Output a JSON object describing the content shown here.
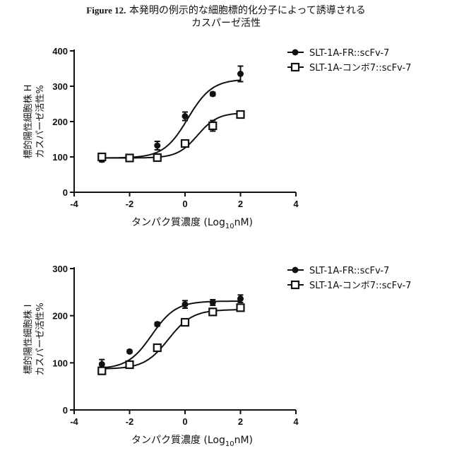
{
  "figure": {
    "label": "Figure 12.",
    "title_line1": "本発明の例示的な細胞標的化分子によって誘導される",
    "title_line2": "カスパーゼ活性"
  },
  "chart_data": [
    {
      "type": "line",
      "xlabel": "タンパク質濃度 (Log10nM)",
      "xlabel_main": "タンパク質濃度 (Log",
      "xlabel_sub": "10",
      "xlabel_end": "nM)",
      "ylabel_line1": "標的陽性細胞株 H",
      "ylabel_line2": "カスパーゼ活性%",
      "xlim": [
        -4,
        4
      ],
      "ylim": [
        0,
        400
      ],
      "x_ticks": [
        -4,
        -2,
        0,
        2,
        4
      ],
      "x_tick_labels": [
        "-4",
        "-2",
        "0",
        "2",
        "4"
      ],
      "y_ticks": [
        0,
        100,
        200,
        300,
        400
      ],
      "y_tick_labels": [
        "0",
        "100",
        "200",
        "300",
        "400"
      ],
      "legend_position": "top-right",
      "series": [
        {
          "name": "SLT-1A-FR::scFv-7",
          "marker": "filled-circle",
          "x": [
            -3,
            -2,
            -1,
            0,
            1,
            2
          ],
          "y": [
            92,
            97,
            132,
            215,
            278,
            335
          ],
          "err": [
            6,
            4,
            12,
            12,
            5,
            22
          ],
          "fit": {
            "bottom": 97,
            "top": 320,
            "ec50": 0.1,
            "slope": 1.0
          }
        },
        {
          "name": "SLT-1A-コンボ7::scFv-7",
          "marker": "open-square",
          "x": [
            -3,
            -2,
            -1,
            0,
            1,
            2
          ],
          "y": [
            100,
            97,
            98,
            138,
            188,
            220
          ],
          "err": [
            8,
            4,
            3,
            5,
            15,
            8
          ],
          "fit": {
            "bottom": 97,
            "top": 225,
            "ec50": 0.45,
            "slope": 1.2
          }
        }
      ]
    },
    {
      "type": "line",
      "xlabel": "タンパク質濃度 (Log10nM)",
      "xlabel_main": "タンパク質濃度 (Log",
      "xlabel_sub": "10",
      "xlabel_end": "nM)",
      "ylabel_line1": "標的陽性細胞株 I",
      "ylabel_line2": "カスパーゼ活性%",
      "xlim": [
        -4,
        4
      ],
      "ylim": [
        0,
        300
      ],
      "x_ticks": [
        -4,
        -2,
        0,
        2,
        4
      ],
      "x_tick_labels": [
        "-4",
        "-2",
        "0",
        "2",
        "4"
      ],
      "y_ticks": [
        0,
        100,
        200,
        300
      ],
      "y_tick_labels": [
        "0",
        "100",
        "200",
        "300"
      ],
      "legend_position": "top-right",
      "series": [
        {
          "name": "SLT-1A-FR::scFv-7",
          "marker": "filled-circle",
          "x": [
            -3,
            -2,
            -1,
            0,
            1,
            2
          ],
          "y": [
            97,
            124,
            182,
            224,
            228,
            236
          ],
          "err": [
            10,
            3,
            4,
            8,
            6,
            8
          ],
          "fit": {
            "bottom": 87,
            "top": 231,
            "ec50": -1.2,
            "slope": 1.0
          }
        },
        {
          "name": "SLT-1A-コンボ7::scFv-7",
          "marker": "open-square",
          "x": [
            -3,
            -2,
            -1,
            0,
            1,
            2
          ],
          "y": [
            83,
            96,
            132,
            186,
            208,
            217
          ],
          "err": [
            6,
            6,
            5,
            4,
            3,
            5
          ],
          "fit": {
            "bottom": 87,
            "top": 213,
            "ec50": -0.6,
            "slope": 1.0
          }
        }
      ]
    }
  ]
}
